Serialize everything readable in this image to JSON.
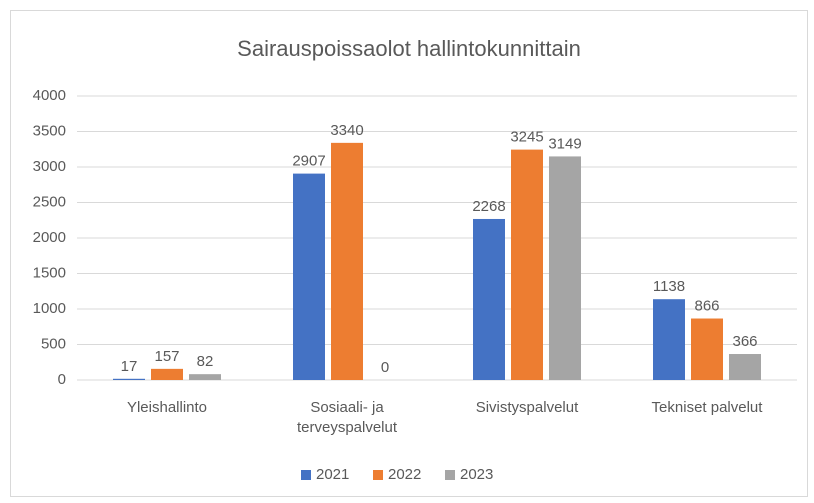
{
  "chart_data": {
    "type": "bar",
    "title": "Sairauspoissaolot hallintokunnittain",
    "categories": [
      "Yleishallinto",
      "Sosiaali- ja terveyspalvelut",
      "Sivistyspalvelut",
      "Tekniset palvelut"
    ],
    "series": [
      {
        "name": "2021",
        "color": "#4472c4",
        "values": [
          17,
          2907,
          2268,
          1138
        ]
      },
      {
        "name": "2022",
        "color": "#ed7d31",
        "values": [
          157,
          3340,
          3245,
          866
        ]
      },
      {
        "name": "2023",
        "color": "#a5a5a5",
        "values": [
          82,
          0,
          3149,
          366
        ]
      }
    ],
    "ylim": [
      0,
      4000
    ],
    "yticks": [
      0,
      500,
      1000,
      1500,
      2000,
      2500,
      3000,
      3500,
      4000
    ],
    "grid": true,
    "legend": "bottom"
  }
}
